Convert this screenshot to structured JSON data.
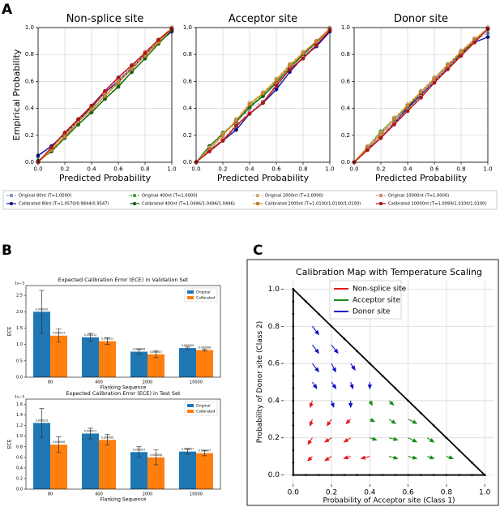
{
  "panel_labels": [
    "A",
    "B",
    "C"
  ],
  "chart_data": [
    {
      "type": "line",
      "title": "Non-splice site",
      "xlabel": "Predicted Probability",
      "ylabel": "Empirical Probability",
      "xlim": [
        0,
        1
      ],
      "ylim": [
        0,
        1
      ],
      "grid": true,
      "xticks": [
        {
          "value": 0,
          "label": "0.0"
        },
        0.2,
        0.4,
        0.6,
        0.8,
        {
          "value": 1,
          "label": "1.0"
        }
      ],
      "yticks": [
        {
          "value": 0,
          "label": "0.0"
        },
        0.2,
        0.4,
        0.6,
        0.8,
        {
          "value": 1,
          "label": "1.0"
        }
      ],
      "x": [
        0,
        0.1,
        0.2,
        0.3,
        0.4,
        0.5,
        0.6,
        0.7,
        0.8,
        0.9,
        1
      ],
      "series": [
        {
          "name": "Original     80nt (T=1.0000)",
          "color": "#8a9be0",
          "dashed": true,
          "values": [
            0.04,
            0.12,
            0.22,
            0.32,
            0.42,
            0.51,
            0.61,
            0.71,
            0.8,
            0.9,
            0.98
          ]
        },
        {
          "name": "Calibrated 80nt (T=1.0570/0.9844/0.9547)",
          "color": "#1010a0",
          "dashed": false,
          "values": [
            0.05,
            0.12,
            0.21,
            0.31,
            0.41,
            0.52,
            0.6,
            0.7,
            0.8,
            0.89,
            0.97
          ]
        },
        {
          "name": "Original     400nt (T=1.0000)",
          "color": "#3cb83c",
          "dashed": true,
          "values": [
            0.01,
            0.09,
            0.19,
            0.28,
            0.38,
            0.47,
            0.57,
            0.67,
            0.77,
            0.88,
            0.99
          ]
        },
        {
          "name": "Calibrated 400nt (T=1.0496/1.0496/1.0496)",
          "color": "#0a6a0a",
          "dashed": false,
          "values": [
            0.01,
            0.08,
            0.18,
            0.28,
            0.37,
            0.47,
            0.56,
            0.67,
            0.77,
            0.88,
            0.98
          ]
        },
        {
          "name": "Original     2000nt (T=1.0000)",
          "color": "#f5c27a",
          "dashed": true,
          "values": [
            0.0,
            0.1,
            0.2,
            0.3,
            0.4,
            0.5,
            0.6,
            0.7,
            0.8,
            0.9,
            1.0
          ]
        },
        {
          "name": "Calibrated 2000nt (T=1.0100/1.0100/1.0100)",
          "color": "#d98a20",
          "dashed": false,
          "values": [
            0.0,
            0.09,
            0.19,
            0.3,
            0.39,
            0.49,
            0.59,
            0.69,
            0.79,
            0.89,
            0.99
          ]
        },
        {
          "name": "Original     10000nt (T=1.0000)",
          "color": "#f08c7c",
          "dashed": true,
          "values": [
            0.0,
            0.11,
            0.21,
            0.31,
            0.42,
            0.52,
            0.62,
            0.72,
            0.82,
            0.91,
            1.0
          ]
        },
        {
          "name": "Calibrated 10000nt (T=1.0099/1.0100/1.0100)",
          "color": "#c01010",
          "dashed": false,
          "values": [
            0.0,
            0.11,
            0.22,
            0.32,
            0.42,
            0.53,
            0.63,
            0.72,
            0.81,
            0.91,
            0.99
          ]
        }
      ]
    },
    {
      "type": "line",
      "title": "Acceptor site",
      "xlabel": "Predicted Probability",
      "xlim": [
        0,
        1
      ],
      "ylim": [
        0,
        1
      ],
      "grid": true,
      "xticks": [
        {
          "value": 0,
          "label": "0.0"
        },
        0.2,
        0.4,
        0.6,
        0.8,
        {
          "value": 1,
          "label": "1.0"
        }
      ],
      "yticks": [
        {
          "value": 0,
          "label": "0.0"
        },
        0.2,
        0.4,
        0.6,
        0.8,
        {
          "value": 1,
          "label": "1.0"
        }
      ],
      "x": [
        0,
        0.1,
        0.2,
        0.3,
        0.4,
        0.5,
        0.6,
        0.7,
        0.8,
        0.9,
        1
      ],
      "series": [
        {
          "color": "#8a9be0",
          "dashed": true,
          "values": [
            0.0,
            0.1,
            0.17,
            0.25,
            0.4,
            0.45,
            0.55,
            0.7,
            0.79,
            0.87,
            0.98
          ]
        },
        {
          "color": "#1010a0",
          "dashed": false,
          "values": [
            0.0,
            0.09,
            0.16,
            0.24,
            0.36,
            0.44,
            0.54,
            0.67,
            0.78,
            0.86,
            0.97
          ]
        },
        {
          "color": "#3cb83c",
          "dashed": true,
          "values": [
            0.0,
            0.12,
            0.22,
            0.31,
            0.42,
            0.5,
            0.6,
            0.71,
            0.8,
            0.89,
            0.99
          ]
        },
        {
          "color": "#0a6a0a",
          "dashed": false,
          "values": [
            0.0,
            0.12,
            0.21,
            0.3,
            0.41,
            0.49,
            0.59,
            0.7,
            0.8,
            0.89,
            0.99
          ]
        },
        {
          "color": "#f5c27a",
          "dashed": true,
          "values": [
            0.0,
            0.11,
            0.21,
            0.32,
            0.44,
            0.52,
            0.62,
            0.73,
            0.82,
            0.9,
            1.0
          ]
        },
        {
          "color": "#d98a20",
          "dashed": false,
          "values": [
            0.0,
            0.1,
            0.2,
            0.31,
            0.43,
            0.51,
            0.61,
            0.72,
            0.81,
            0.9,
            0.99
          ]
        },
        {
          "color": "#f08c7c",
          "dashed": true,
          "values": [
            0.0,
            0.09,
            0.17,
            0.28,
            0.37,
            0.45,
            0.58,
            0.7,
            0.78,
            0.88,
            0.99
          ]
        },
        {
          "color": "#c01010",
          "dashed": false,
          "values": [
            0.0,
            0.08,
            0.16,
            0.27,
            0.36,
            0.44,
            0.57,
            0.69,
            0.77,
            0.87,
            0.98
          ]
        }
      ]
    },
    {
      "type": "line",
      "title": "Donor site",
      "xlabel": "Predicted Probability",
      "xlim": [
        0,
        1
      ],
      "ylim": [
        0,
        1
      ],
      "grid": true,
      "xticks": [
        {
          "value": 0,
          "label": "0.0"
        },
        0.2,
        0.4,
        0.6,
        0.8,
        {
          "value": 1,
          "label": "1.0"
        }
      ],
      "yticks": [
        {
          "value": 0,
          "label": "0.0"
        },
        0.2,
        0.4,
        0.6,
        0.8,
        {
          "value": 1,
          "label": "1.0"
        }
      ],
      "x": [
        0,
        0.1,
        0.2,
        0.3,
        0.4,
        0.5,
        0.6,
        0.7,
        0.8,
        0.9,
        1
      ],
      "series": [
        {
          "color": "#8a9be0",
          "dashed": true,
          "values": [
            0.0,
            0.11,
            0.19,
            0.3,
            0.41,
            0.51,
            0.61,
            0.71,
            0.81,
            0.9,
            0.96
          ]
        },
        {
          "color": "#1010a0",
          "dashed": false,
          "values": [
            0.0,
            0.1,
            0.18,
            0.29,
            0.4,
            0.5,
            0.6,
            0.7,
            0.8,
            0.89,
            0.93
          ]
        },
        {
          "color": "#3cb83c",
          "dashed": true,
          "values": [
            0.0,
            0.12,
            0.23,
            0.33,
            0.42,
            0.53,
            0.63,
            0.73,
            0.82,
            0.91,
            0.99
          ]
        },
        {
          "color": "#0a6a0a",
          "dashed": false,
          "values": [
            0.0,
            0.11,
            0.22,
            0.32,
            0.41,
            0.52,
            0.62,
            0.72,
            0.81,
            0.9,
            0.99
          ]
        },
        {
          "color": "#f5c27a",
          "dashed": true,
          "values": [
            0.0,
            0.12,
            0.22,
            0.33,
            0.43,
            0.53,
            0.63,
            0.73,
            0.83,
            0.92,
            1.0
          ]
        },
        {
          "color": "#d98a20",
          "dashed": false,
          "values": [
            0.0,
            0.11,
            0.21,
            0.32,
            0.42,
            0.52,
            0.62,
            0.72,
            0.82,
            0.91,
            0.99
          ]
        },
        {
          "color": "#f08c7c",
          "dashed": true,
          "values": [
            0.0,
            0.1,
            0.19,
            0.29,
            0.39,
            0.49,
            0.6,
            0.7,
            0.8,
            0.9,
            1.0
          ]
        },
        {
          "color": "#c01010",
          "dashed": false,
          "values": [
            0.0,
            0.09,
            0.18,
            0.28,
            0.38,
            0.48,
            0.59,
            0.69,
            0.79,
            0.89,
            0.99
          ]
        }
      ]
    },
    {
      "type": "bar",
      "title": "Expected Calibration Error (ECE) in Validation Set",
      "xlabel": "Flanking Sequence",
      "ylabel": "ECE",
      "offset_label": "1e−5",
      "categories": [
        "80",
        "400",
        "2000",
        "10000"
      ],
      "ylim": [
        0,
        2.8
      ],
      "grid": true,
      "yticks": [
        {
          "value": 0,
          "label": "0.0"
        },
        0.5,
        {
          "value": 1,
          "label": "1.0"
        },
        1.5,
        {
          "value": 2,
          "label": "2.0"
        },
        2.5
      ],
      "series": [
        {
          "name": "Original",
          "color": "#1f77b4",
          "values": [
            2.0,
            1.22,
            0.78,
            0.89
          ],
          "errors": [
            0.65,
            0.12,
            0.07,
            0.03
          ],
          "value_labels": [
            "0.000020",
            "0.000012",
            "0.000008",
            "0.000009"
          ]
        },
        {
          "name": "Calibrated",
          "color": "#ff7f0e",
          "values": [
            1.27,
            1.1,
            0.7,
            0.83
          ],
          "errors": [
            0.2,
            0.1,
            0.1,
            0.03
          ],
          "value_labels": [
            "0.000013",
            "0.000011",
            "0.000007",
            "0.000008"
          ]
        }
      ]
    },
    {
      "type": "bar",
      "title": "Expected Calibration Error (ECE) in Test Set",
      "xlabel": "Flanking Sequence",
      "ylabel": "ECE",
      "offset_label": "1e−5",
      "categories": [
        "80",
        "400",
        "2000",
        "10000"
      ],
      "ylim": [
        0,
        1.7
      ],
      "grid": true,
      "yticks": [
        {
          "value": 0,
          "label": "0.0"
        },
        0.2,
        0.4,
        0.6,
        0.8,
        {
          "value": 1,
          "label": "1.0"
        },
        1.2,
        1.4,
        1.6
      ],
      "series": [
        {
          "name": "Original",
          "color": "#1f77b4",
          "values": [
            1.25,
            1.05,
            0.7,
            0.71
          ],
          "errors": [
            0.27,
            0.1,
            0.1,
            0.05
          ],
          "value_labels": [
            "0.000013",
            "0.000011",
            "0.000007",
            "0.000007"
          ]
        },
        {
          "name": "Calibrated",
          "color": "#ff7f0e",
          "values": [
            0.84,
            0.93,
            0.6,
            0.68
          ],
          "errors": [
            0.15,
            0.1,
            0.14,
            0.05
          ],
          "value_labels": [
            "0.000008",
            "0.000009",
            "0.000006",
            "0.000007"
          ]
        }
      ]
    },
    {
      "type": "quiver",
      "title": "Calibration Map with Temperature Scaling",
      "xlabel": "Probability of Acceptor site (Class 1)",
      "ylabel": "Probability of Donor site (Class 2)",
      "xlim": [
        -0.05,
        1.05
      ],
      "ylim": [
        -0.05,
        1.05
      ],
      "grid": true,
      "xticks": [
        {
          "value": 0,
          "label": "0.0"
        },
        0.2,
        0.4,
        0.6,
        0.8,
        {
          "value": 1,
          "label": "1.0"
        }
      ],
      "yticks": [
        {
          "value": 0,
          "label": "0.0"
        },
        0.2,
        0.4,
        0.6,
        0.8,
        {
          "value": 1,
          "label": "1.0"
        }
      ],
      "series": [
        {
          "name": "Non-splice site",
          "color": "#e41a1c",
          "x": [
            0.1,
            0.2,
            0.3,
            0.4,
            0.1,
            0.2,
            0.3,
            0.1,
            0.2,
            0.3,
            0.1
          ],
          "y": [
            0.1,
            0.1,
            0.1,
            0.1,
            0.2,
            0.2,
            0.2,
            0.3,
            0.3,
            0.3,
            0.4
          ],
          "u": [
            -0.02,
            -0.03,
            -0.03,
            -0.04,
            -0.02,
            -0.03,
            -0.03,
            -0.01,
            -0.02,
            -0.02,
            -0.01
          ],
          "v": [
            -0.02,
            -0.02,
            -0.01,
            -0.01,
            -0.03,
            -0.02,
            -0.02,
            -0.03,
            -0.03,
            -0.02,
            -0.03
          ]
        },
        {
          "name": "Acceptor site",
          "color": "#1a8a1a",
          "x": [
            0.5,
            0.6,
            0.7,
            0.8,
            0.4,
            0.5,
            0.6,
            0.7,
            0.4,
            0.5,
            0.6,
            0.4,
            0.5
          ],
          "y": [
            0.1,
            0.1,
            0.1,
            0.1,
            0.2,
            0.2,
            0.2,
            0.2,
            0.3,
            0.3,
            0.3,
            0.4,
            0.4
          ],
          "u": [
            0.04,
            0.04,
            0.03,
            0.03,
            0.03,
            0.04,
            0.04,
            0.03,
            0.02,
            0.03,
            0.04,
            0.01,
            0.02
          ],
          "v": [
            -0.01,
            -0.01,
            -0.01,
            -0.01,
            -0.01,
            -0.01,
            -0.02,
            -0.02,
            -0.01,
            -0.02,
            -0.02,
            -0.02,
            -0.02
          ]
        },
        {
          "name": "Donor site",
          "color": "#1010c8",
          "x": [
            0.2,
            0.3,
            0.1,
            0.2,
            0.3,
            0.4,
            0.1,
            0.2,
            0.3,
            0.1,
            0.2,
            0.1
          ],
          "y": [
            0.4,
            0.4,
            0.5,
            0.5,
            0.5,
            0.5,
            0.6,
            0.6,
            0.6,
            0.7,
            0.7,
            0.8
          ],
          "u": [
            0.01,
            0.0,
            0.02,
            0.02,
            0.01,
            0.0,
            0.03,
            0.02,
            0.02,
            0.03,
            0.03,
            0.03
          ],
          "v": [
            -0.03,
            -0.03,
            -0.03,
            -0.03,
            -0.03,
            -0.03,
            -0.04,
            -0.04,
            -0.03,
            -0.04,
            -0.04,
            -0.04
          ]
        }
      ]
    }
  ]
}
